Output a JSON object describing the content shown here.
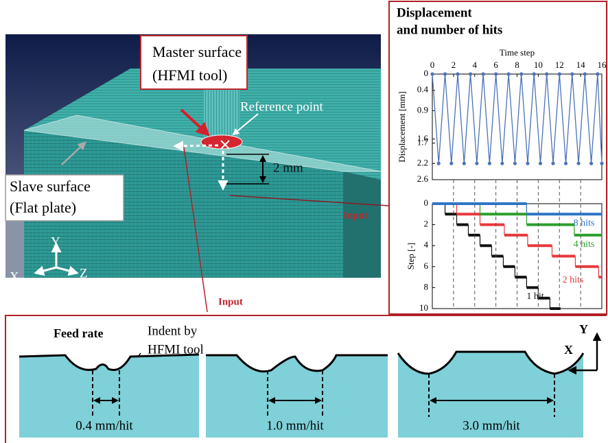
{
  "render": {
    "master_surface": [
      "Master surface",
      "(HFMI tool)"
    ],
    "reference_point": "Reference point",
    "dimension": "2 mm",
    "slave_surface": [
      "Slave surface",
      "(Flat plate)"
    ],
    "axes": {
      "x": "X",
      "y": "Y",
      "z": "Z"
    },
    "input_labels": [
      "Input",
      "Input"
    ]
  },
  "panel_title": [
    "Displacement",
    "and number of hits"
  ],
  "chart_data": [
    {
      "type": "line",
      "x_label": "Time step",
      "y_label": "Displacement [mm]",
      "xlim": [
        0,
        16
      ],
      "xticks": [
        0,
        2,
        4,
        6,
        8,
        10,
        12,
        14,
        16
      ],
      "ylim": [
        0,
        2.6
      ],
      "yticks": [
        0,
        0.4,
        0.9,
        1.6,
        1.7,
        2.2,
        2.6
      ],
      "inverted": true,
      "series": [
        {
          "color": "#4a72b8",
          "x": [
            0,
            0.6,
            1.2,
            1.8,
            2.4,
            3,
            3.6,
            4.2,
            4.8,
            5.4,
            6,
            6.6,
            7.2,
            7.8,
            8.4,
            9,
            9.6,
            10.2,
            10.8,
            11.4,
            12,
            12.6,
            13.2,
            13.8,
            14.4,
            15,
            15.6,
            16
          ],
          "values": [
            0,
            2.2,
            0,
            2.2,
            0,
            2.2,
            0,
            2.2,
            0,
            2.2,
            0,
            2.2,
            0,
            2.2,
            0,
            2.2,
            0,
            2.2,
            0,
            2.2,
            0,
            2.2,
            0,
            2.2,
            0,
            2.2,
            0,
            2.2
          ]
        }
      ]
    },
    {
      "type": "step",
      "y_label": "Step [-]",
      "xlim": [
        0,
        16
      ],
      "ylim": [
        0,
        10
      ],
      "yticks": [
        0,
        2,
        4,
        6,
        8,
        10
      ],
      "inverted": true,
      "series": [
        {
          "name": "1 hit",
          "color": "#111111",
          "bins": [
            0,
            1.2,
            2.3,
            3.4,
            4.5,
            5.6,
            6.7,
            7.8,
            8.9,
            10,
            11.1,
            12.1
          ],
          "values": [
            0,
            1,
            2,
            3,
            4,
            5,
            6,
            7,
            8,
            9,
            10
          ]
        },
        {
          "name": "2 hits",
          "color": "#e8383d",
          "bins": [
            0,
            2.3,
            4.5,
            6.8,
            9,
            11.3,
            13.5,
            15.7,
            16
          ],
          "values": [
            0,
            1,
            2,
            3,
            4,
            5,
            6,
            7
          ]
        },
        {
          "name": "4 hits",
          "color": "#2ca02c",
          "bins": [
            0,
            4.5,
            8.9,
            13.4,
            16
          ],
          "values": [
            0,
            1,
            2,
            3
          ]
        },
        {
          "name": "8 hits",
          "color": "#2e75c6",
          "bins": [
            0,
            8.9,
            16
          ],
          "values": [
            0,
            1
          ]
        }
      ]
    }
  ],
  "feed_rate": {
    "title": "Feed rate",
    "indent_label": [
      "Indent by",
      "HFMI tool"
    ],
    "cases": [
      "0.4 mm/hit",
      "1.0 mm/hit",
      "3.0 mm/hit"
    ],
    "axes": {
      "x": "X",
      "y": "Y"
    }
  }
}
